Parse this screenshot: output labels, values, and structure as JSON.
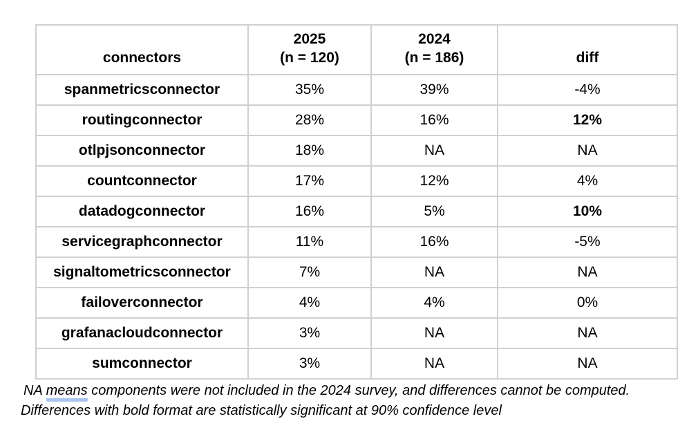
{
  "table": {
    "columns": [
      {
        "label": "connectors",
        "sublabel": ""
      },
      {
        "label": "2025",
        "sublabel": "(n = 120)"
      },
      {
        "label": "2024",
        "sublabel": "(n = 186)"
      },
      {
        "label": "diff",
        "sublabel": ""
      }
    ],
    "rows": [
      {
        "name": "spanmetricsconnector",
        "v2025": "35%",
        "v2024": "39%",
        "diff": "-4%",
        "diff_highlight": false
      },
      {
        "name": "routingconnector",
        "v2025": "28%",
        "v2024": "16%",
        "diff": "12%",
        "diff_highlight": true
      },
      {
        "name": "otlpjsonconnector",
        "v2025": "18%",
        "v2024": "NA",
        "diff": "NA",
        "diff_highlight": false
      },
      {
        "name": "countconnector",
        "v2025": "17%",
        "v2024": "12%",
        "diff": "4%",
        "diff_highlight": false
      },
      {
        "name": "datadogconnector",
        "v2025": "16%",
        "v2024": "5%",
        "diff": "10%",
        "diff_highlight": true
      },
      {
        "name": "servicegraphconnector",
        "v2025": "11%",
        "v2024": "16%",
        "diff": "-5%",
        "diff_highlight": false
      },
      {
        "name": "signaltometricsconnector",
        "v2025": "7%",
        "v2024": "NA",
        "diff": "NA",
        "diff_highlight": false
      },
      {
        "name": "failoverconnector",
        "v2025": "4%",
        "v2024": "4%",
        "diff": "0%",
        "diff_highlight": false
      },
      {
        "name": "grafanacloudconnector",
        "v2025": "3%",
        "v2024": "NA",
        "diff": "NA",
        "diff_highlight": false
      },
      {
        "name": "sumconnector",
        "v2025": "3%",
        "v2024": "NA",
        "diff": "NA",
        "diff_highlight": false
      }
    ],
    "highlight_color": "#7499e1",
    "border_color": "#d0d0d0"
  },
  "footnote": {
    "line1_prefix": "NA ",
    "line1_underlined_word": "means",
    "line1_suffix": " components were not included in the 2024 survey, and differences cannot be computed.",
    "line2": "Differences with bold format are statistically significant at 90% confidence level",
    "underline_color": "#aac4f0"
  },
  "chart_data": {
    "type": "table",
    "title": "",
    "columns": [
      "connectors",
      "2025 (n = 120)",
      "2024 (n = 186)",
      "diff"
    ],
    "rows": [
      [
        "spanmetricsconnector",
        "35%",
        "39%",
        "-4%"
      ],
      [
        "routingconnector",
        "28%",
        "16%",
        "12%"
      ],
      [
        "otlpjsonconnector",
        "18%",
        "NA",
        "NA"
      ],
      [
        "countconnector",
        "17%",
        "12%",
        "4%"
      ],
      [
        "datadogconnector",
        "16%",
        "5%",
        "10%"
      ],
      [
        "servicegraphconnector",
        "11%",
        "16%",
        "-5%"
      ],
      [
        "signaltometricsconnector",
        "7%",
        "NA",
        "NA"
      ],
      [
        "failoverconnector",
        "4%",
        "4%",
        "0%"
      ],
      [
        "grafanacloudconnector",
        "3%",
        "NA",
        "NA"
      ],
      [
        "sumconnector",
        "3%",
        "NA",
        "NA"
      ]
    ],
    "highlighted_cells": [
      {
        "row": "routingconnector",
        "column": "diff",
        "value": "12%"
      },
      {
        "row": "datadogconnector",
        "column": "diff",
        "value": "10%"
      }
    ]
  }
}
